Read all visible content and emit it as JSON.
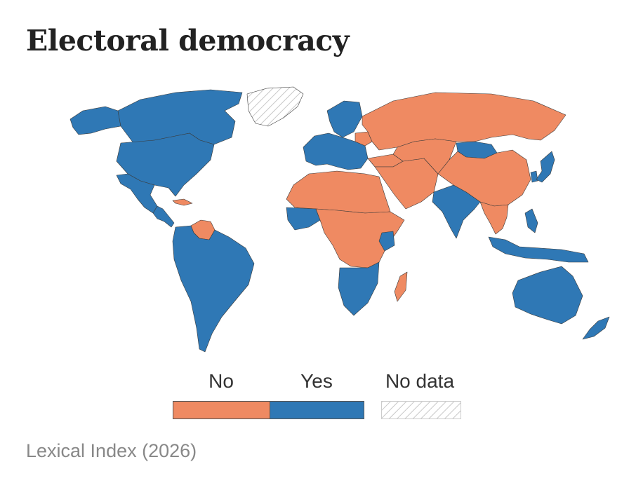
{
  "title": "Electoral democracy",
  "colors": {
    "no": "#ef8a62",
    "yes": "#2f78b5",
    "no_data_fill": "#ffffff",
    "no_data_hatch": "#c8c8c8",
    "border": "#3a3a3a"
  },
  "legend": {
    "no": "No",
    "yes": "Yes",
    "no_data": "No data"
  },
  "regions": [
    {
      "name": "Alaska",
      "status": "yes"
    },
    {
      "name": "Canada",
      "status": "yes"
    },
    {
      "name": "United States",
      "status": "yes"
    },
    {
      "name": "Mexico",
      "status": "yes"
    },
    {
      "name": "Central America",
      "status": "yes"
    },
    {
      "name": "Cuba",
      "status": "no"
    },
    {
      "name": "Greenland",
      "status": "no_data"
    },
    {
      "name": "Venezuela",
      "status": "no"
    },
    {
      "name": "South America",
      "status": "yes"
    },
    {
      "name": "Western Europe",
      "status": "yes"
    },
    {
      "name": "Scandinavia",
      "status": "yes"
    },
    {
      "name": "Belarus",
      "status": "no"
    },
    {
      "name": "Russia",
      "status": "no"
    },
    {
      "name": "Turkey",
      "status": "no"
    },
    {
      "name": "Middle East",
      "status": "no"
    },
    {
      "name": "North Africa",
      "status": "no"
    },
    {
      "name": "West Africa democracies",
      "status": "yes"
    },
    {
      "name": "Central Africa",
      "status": "no"
    },
    {
      "name": "Kenya",
      "status": "yes"
    },
    {
      "name": "Southern Africa",
      "status": "yes"
    },
    {
      "name": "Madagascar",
      "status": "no"
    },
    {
      "name": "Central Asia",
      "status": "no"
    },
    {
      "name": "Mongolia",
      "status": "yes"
    },
    {
      "name": "China",
      "status": "no"
    },
    {
      "name": "India",
      "status": "yes"
    },
    {
      "name": "Southeast Asia mainland",
      "status": "no"
    },
    {
      "name": "Japan",
      "status": "yes"
    },
    {
      "name": "South Korea",
      "status": "yes"
    },
    {
      "name": "Indonesia",
      "status": "yes"
    },
    {
      "name": "Philippines",
      "status": "yes"
    },
    {
      "name": "Australia",
      "status": "yes"
    },
    {
      "name": "New Zealand",
      "status": "yes"
    }
  ],
  "source": "Lexical Index (2026)"
}
